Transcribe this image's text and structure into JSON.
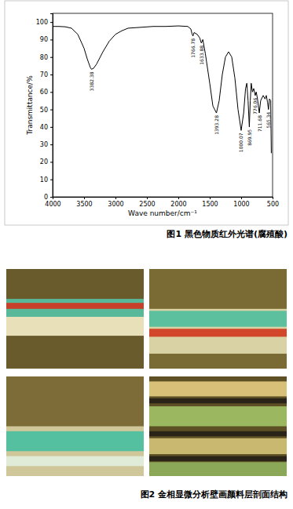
{
  "chart_data": {
    "type": "line",
    "title": "图1 黑色物质红外光谱(腐殖酸)",
    "x_label": "Wave number/cm⁻¹",
    "y_label": "Transmittance/%",
    "x": [
      4000,
      3900,
      3800,
      3700,
      3600,
      3500,
      3450,
      3400,
      3382.38,
      3350,
      3300,
      3200,
      3100,
      3000,
      2900,
      2800,
      2600,
      2400,
      2200,
      2000,
      1850,
      1800,
      1780,
      1766.78,
      1750,
      1700,
      1660,
      1633.88,
      1610,
      1570,
      1500,
      1450,
      1393.28,
      1350,
      1300,
      1250,
      1200,
      1150,
      1100,
      1050,
      1000.07,
      960,
      930,
      910,
      890,
      869.95,
      855,
      840,
      820,
      800,
      776.06,
      760,
      740,
      711.68,
      690,
      650,
      620,
      600,
      580,
      565.34,
      550,
      530,
      520
    ],
    "values": [
      97.5,
      97.5,
      97.3,
      96.5,
      93,
      85,
      79,
      74,
      73,
      73.5,
      76,
      83,
      89,
      93,
      95,
      96.5,
      97,
      97.5,
      97.5,
      97.8,
      97.5,
      96,
      93,
      92,
      94,
      93,
      91,
      88,
      90,
      82,
      65,
      52,
      48,
      55,
      70,
      80,
      83,
      80,
      68,
      50,
      38,
      48,
      62,
      65,
      55,
      40,
      55,
      65,
      60,
      62,
      58,
      60,
      56,
      48,
      55,
      58,
      56,
      58,
      54,
      50,
      56,
      55,
      25
    ],
    "color": "#000000",
    "xlim": [
      4000,
      500
    ],
    "xticks": [
      4000,
      3500,
      3000,
      2500,
      2000,
      1500,
      1000,
      500
    ],
    "ylim": [
      0,
      105
    ],
    "yticks": [
      0,
      10,
      20,
      30,
      40,
      50,
      60,
      70,
      80,
      90,
      100
    ],
    "annotations": [
      {
        "x": 3382.38,
        "y": 73
      },
      {
        "x": 1766.78,
        "y": 92
      },
      {
        "x": 1633.88,
        "y": 88
      },
      {
        "x": 1393.28,
        "y": 48
      },
      {
        "x": 1000.07,
        "y": 38
      },
      {
        "x": 869.95,
        "y": 40
      },
      {
        "x": 776.06,
        "y": 58
      },
      {
        "x": 711.68,
        "y": 48
      },
      {
        "x": 565.34,
        "y": 50
      }
    ]
  },
  "figure2": {
    "caption": "图2 金相显微分析壁画颜料层剖面结构"
  }
}
